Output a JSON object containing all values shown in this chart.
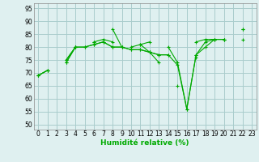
{
  "x": [
    0,
    1,
    2,
    3,
    4,
    5,
    6,
    7,
    8,
    9,
    10,
    11,
    12,
    13,
    14,
    15,
    16,
    17,
    18,
    19,
    20,
    21,
    22,
    23
  ],
  "series": [
    [
      69,
      71,
      null,
      75,
      80,
      null,
      82,
      null,
      87,
      80,
      null,
      81,
      82,
      null,
      80,
      74,
      56,
      77,
      82,
      83,
      83,
      null,
      87,
      null
    ],
    [
      null,
      null,
      null,
      75,
      80,
      null,
      82,
      83,
      82,
      null,
      80,
      81,
      78,
      74,
      null,
      65,
      null,
      76,
      null,
      null,
      null,
      null,
      null,
      null
    ],
    [
      69,
      71,
      null,
      74,
      80,
      80,
      81,
      82,
      80,
      80,
      79,
      79,
      78,
      77,
      77,
      null,
      null,
      82,
      83,
      83,
      83,
      null,
      83,
      null
    ],
    [
      69,
      71,
      null,
      74,
      80,
      80,
      81,
      82,
      80,
      80,
      79,
      79,
      78,
      77,
      77,
      73,
      56,
      77,
      80,
      83,
      83,
      null,
      87,
      null
    ]
  ],
  "bg_color": "#dff0f0",
  "grid_color": "#aacccc",
  "line_color": "#00aa00",
  "marker": "+",
  "xlabel": "Humidité relative (%)",
  "ylabel_ticks": [
    50,
    55,
    60,
    65,
    70,
    75,
    80,
    85,
    90,
    95
  ],
  "ylim": [
    48,
    97
  ],
  "xlim": [
    -0.5,
    23.5
  ],
  "axis_fontsize": 5.5,
  "label_fontsize": 6.5
}
